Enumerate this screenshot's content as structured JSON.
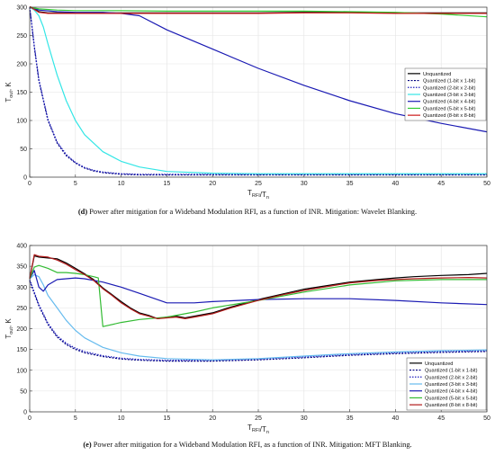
{
  "captions": [
    {
      "label": "(d)",
      "text": "Power after mitigation for a Wideband Modulation RFI, as a function of INR. Mitigation: Wavelet Blanking."
    },
    {
      "label": "(e)",
      "text": "Power after mitigation for a Wideband Modulation RFI, as a function of INR. Mitigation: MFT Blanking."
    }
  ],
  "chart_data": [
    {
      "type": "line",
      "title": "",
      "xlabel": "T_RFI/T_n",
      "ylabel": "T_out, K",
      "xlim": [
        0,
        50
      ],
      "ylim": [
        0,
        300
      ],
      "xticks": [
        0,
        5,
        10,
        15,
        20,
        25,
        30,
        35,
        40,
        45,
        50
      ],
      "yticks": [
        0,
        50,
        100,
        150,
        200,
        250,
        300
      ],
      "grid": true,
      "legend_position": "right",
      "series": [
        {
          "name": "Unquantized",
          "color": "#000000",
          "dash": "",
          "x": [
            0,
            0.5,
            1,
            2,
            3,
            5,
            10,
            15,
            20,
            25,
            30,
            35,
            40,
            45,
            50
          ],
          "y": [
            301,
            297,
            292,
            290,
            290,
            290,
            290,
            290,
            290,
            290,
            291,
            291,
            290,
            290,
            290
          ]
        },
        {
          "name": "Quantized (1-bit x 1-bit)",
          "color": "#000080",
          "dash": "2,1.5",
          "x": [
            0,
            0.5,
            1,
            2,
            3,
            4,
            5,
            6,
            7,
            8,
            10,
            12,
            15,
            20,
            25,
            30,
            35,
            40,
            45,
            50
          ],
          "y": [
            300,
            230,
            170,
            100,
            60,
            38,
            25,
            16,
            11,
            8,
            5,
            4,
            4,
            4,
            4,
            4,
            4,
            4,
            4,
            4
          ]
        },
        {
          "name": "Quantized (2-bit x 2-bit)",
          "color": "#1f1fbf",
          "dash": "1.5,1.5",
          "x": [
            0,
            0.5,
            1,
            2,
            3,
            4,
            5,
            6,
            7,
            8,
            10,
            12,
            15,
            20,
            25,
            30,
            35,
            40,
            45,
            50
          ],
          "y": [
            300,
            232,
            172,
            102,
            62,
            40,
            26,
            17,
            12,
            9,
            6,
            5,
            5,
            5,
            5,
            5,
            5,
            5,
            5,
            5
          ]
        },
        {
          "name": "Quantized (3-bit x 3-bit)",
          "color": "#33e6e6",
          "dash": "",
          "x": [
            0,
            0.5,
            1,
            1.5,
            2,
            3,
            4,
            5,
            6,
            8,
            10,
            12,
            15,
            20,
            25,
            30,
            35,
            40,
            45,
            50
          ],
          "y": [
            300,
            295,
            285,
            265,
            235,
            180,
            135,
            100,
            75,
            45,
            28,
            18,
            10,
            7,
            6,
            6,
            6,
            6,
            6,
            6
          ]
        },
        {
          "name": "Quantized (4-bit x 4-bit)",
          "color": "#1a1ab3",
          "dash": "",
          "x": [
            0,
            1,
            3,
            5,
            8,
            10,
            12,
            15,
            20,
            25,
            30,
            35,
            40,
            45,
            50
          ],
          "y": [
            300,
            295,
            292,
            291,
            291,
            289,
            285,
            260,
            226,
            192,
            162,
            135,
            112,
            95,
            80
          ]
        },
        {
          "name": "Quantized (5-bit x 5-bit)",
          "color": "#33cc33",
          "dash": "",
          "x": [
            0,
            1,
            3,
            5,
            10,
            15,
            20,
            25,
            30,
            35,
            40,
            45,
            50
          ],
          "y": [
            300,
            297,
            295,
            294,
            294,
            293,
            293,
            293,
            293,
            292,
            291,
            288,
            283
          ]
        },
        {
          "name": "Quantized (8-bit x 8-bit)",
          "color": "#cc1a1a",
          "dash": "",
          "x": [
            0,
            0.5,
            1,
            2,
            3,
            5,
            10,
            15,
            20,
            25,
            30,
            35,
            40,
            45,
            50
          ],
          "y": [
            301,
            296,
            291,
            289,
            289,
            289,
            289,
            289,
            289,
            289,
            290,
            290,
            289,
            289,
            289
          ]
        }
      ]
    },
    {
      "type": "line",
      "title": "",
      "xlabel": "T_RFI/T_n",
      "ylabel": "T_out, K",
      "xlim": [
        0,
        50
      ],
      "ylim": [
        0,
        400
      ],
      "xticks": [
        0,
        5,
        10,
        15,
        20,
        25,
        30,
        35,
        40,
        45,
        50
      ],
      "yticks": [
        0,
        50,
        100,
        150,
        200,
        250,
        300,
        350,
        400
      ],
      "grid": true,
      "legend_position": "bottom-right",
      "series": [
        {
          "name": "Unquantized",
          "color": "#000000",
          "dash": "",
          "x": [
            0,
            0.5,
            1,
            2,
            3,
            4,
            5,
            6,
            7,
            8,
            9,
            10,
            11,
            12,
            13,
            14,
            15,
            16,
            17,
            18,
            20,
            22,
            25,
            28,
            30,
            33,
            35,
            38,
            40,
            42,
            45,
            48,
            50
          ],
          "y": [
            320,
            375,
            372,
            370,
            368,
            358,
            345,
            332,
            318,
            298,
            282,
            265,
            250,
            238,
            232,
            224,
            228,
            230,
            226,
            230,
            238,
            252,
            270,
            285,
            295,
            305,
            312,
            318,
            322,
            325,
            328,
            330,
            333
          ]
        },
        {
          "name": "Quantized (1-bit x 1-bit)",
          "color": "#000080",
          "dash": "2,1.5",
          "x": [
            0,
            0.5,
            1,
            2,
            3,
            4,
            5,
            6,
            8,
            10,
            12,
            15,
            20,
            25,
            30,
            35,
            40,
            45,
            50
          ],
          "y": [
            315,
            285,
            255,
            210,
            180,
            162,
            150,
            142,
            133,
            127,
            124,
            122,
            122,
            125,
            130,
            136,
            140,
            143,
            145
          ]
        },
        {
          "name": "Quantized (2-bit x 2-bit)",
          "color": "#1f1fbf",
          "dash": "1.5,1.5",
          "x": [
            0,
            0.5,
            1,
            2,
            3,
            4,
            5,
            6,
            8,
            10,
            12,
            15,
            20,
            25,
            30,
            35,
            40,
            45,
            50
          ],
          "y": [
            318,
            288,
            258,
            213,
            183,
            165,
            153,
            145,
            135,
            129,
            126,
            124,
            124,
            127,
            132,
            138,
            142,
            145,
            147
          ]
        },
        {
          "name": "Quantized (3-bit x 3-bit)",
          "color": "#66bbee",
          "dash": "",
          "x": [
            0,
            0.5,
            1,
            1.5,
            2,
            3,
            4,
            5,
            6,
            8,
            10,
            12,
            15,
            20,
            25,
            30,
            35,
            40,
            45,
            50
          ],
          "y": [
            320,
            330,
            325,
            305,
            280,
            250,
            220,
            196,
            178,
            155,
            142,
            134,
            128,
            125,
            128,
            134,
            140,
            144,
            147,
            149
          ]
        },
        {
          "name": "Quantized (4-bit x 4-bit)",
          "color": "#1a1ab3",
          "dash": "",
          "x": [
            0,
            0.5,
            1,
            1.5,
            2,
            3,
            4,
            5,
            6,
            8,
            10,
            12,
            15,
            18,
            20,
            25,
            30,
            35,
            40,
            45,
            50
          ],
          "y": [
            320,
            340,
            300,
            290,
            305,
            318,
            320,
            322,
            320,
            312,
            300,
            285,
            262,
            262,
            265,
            270,
            272,
            272,
            268,
            262,
            258
          ]
        },
        {
          "name": "Quantized (5-bit x 5-bit)",
          "color": "#33bb33",
          "dash": "",
          "x": [
            0,
            0.5,
            1,
            2,
            3,
            4,
            5,
            6,
            7,
            7.5,
            8,
            10,
            12,
            15,
            18,
            20,
            25,
            30,
            35,
            40,
            45,
            50
          ],
          "y": [
            320,
            348,
            352,
            345,
            335,
            335,
            333,
            330,
            325,
            322,
            205,
            215,
            222,
            228,
            240,
            250,
            268,
            288,
            305,
            315,
            318,
            318
          ]
        },
        {
          "name": "Quantized (8-bit x 8-bit)",
          "color": "#b31a1a",
          "dash": "",
          "x": [
            0,
            0.5,
            1,
            2,
            3,
            4,
            5,
            6,
            7,
            8,
            9,
            10,
            11,
            12,
            13,
            14,
            15,
            16,
            17,
            18,
            20,
            22,
            25,
            28,
            30,
            33,
            35,
            38,
            40,
            42,
            45,
            48,
            50
          ],
          "y": [
            320,
            378,
            374,
            372,
            365,
            355,
            342,
            330,
            316,
            296,
            280,
            262,
            248,
            236,
            230,
            224,
            226,
            228,
            224,
            228,
            236,
            250,
            268,
            283,
            292,
            303,
            310,
            316,
            318,
            320,
            322,
            323,
            322
          ]
        }
      ]
    }
  ]
}
